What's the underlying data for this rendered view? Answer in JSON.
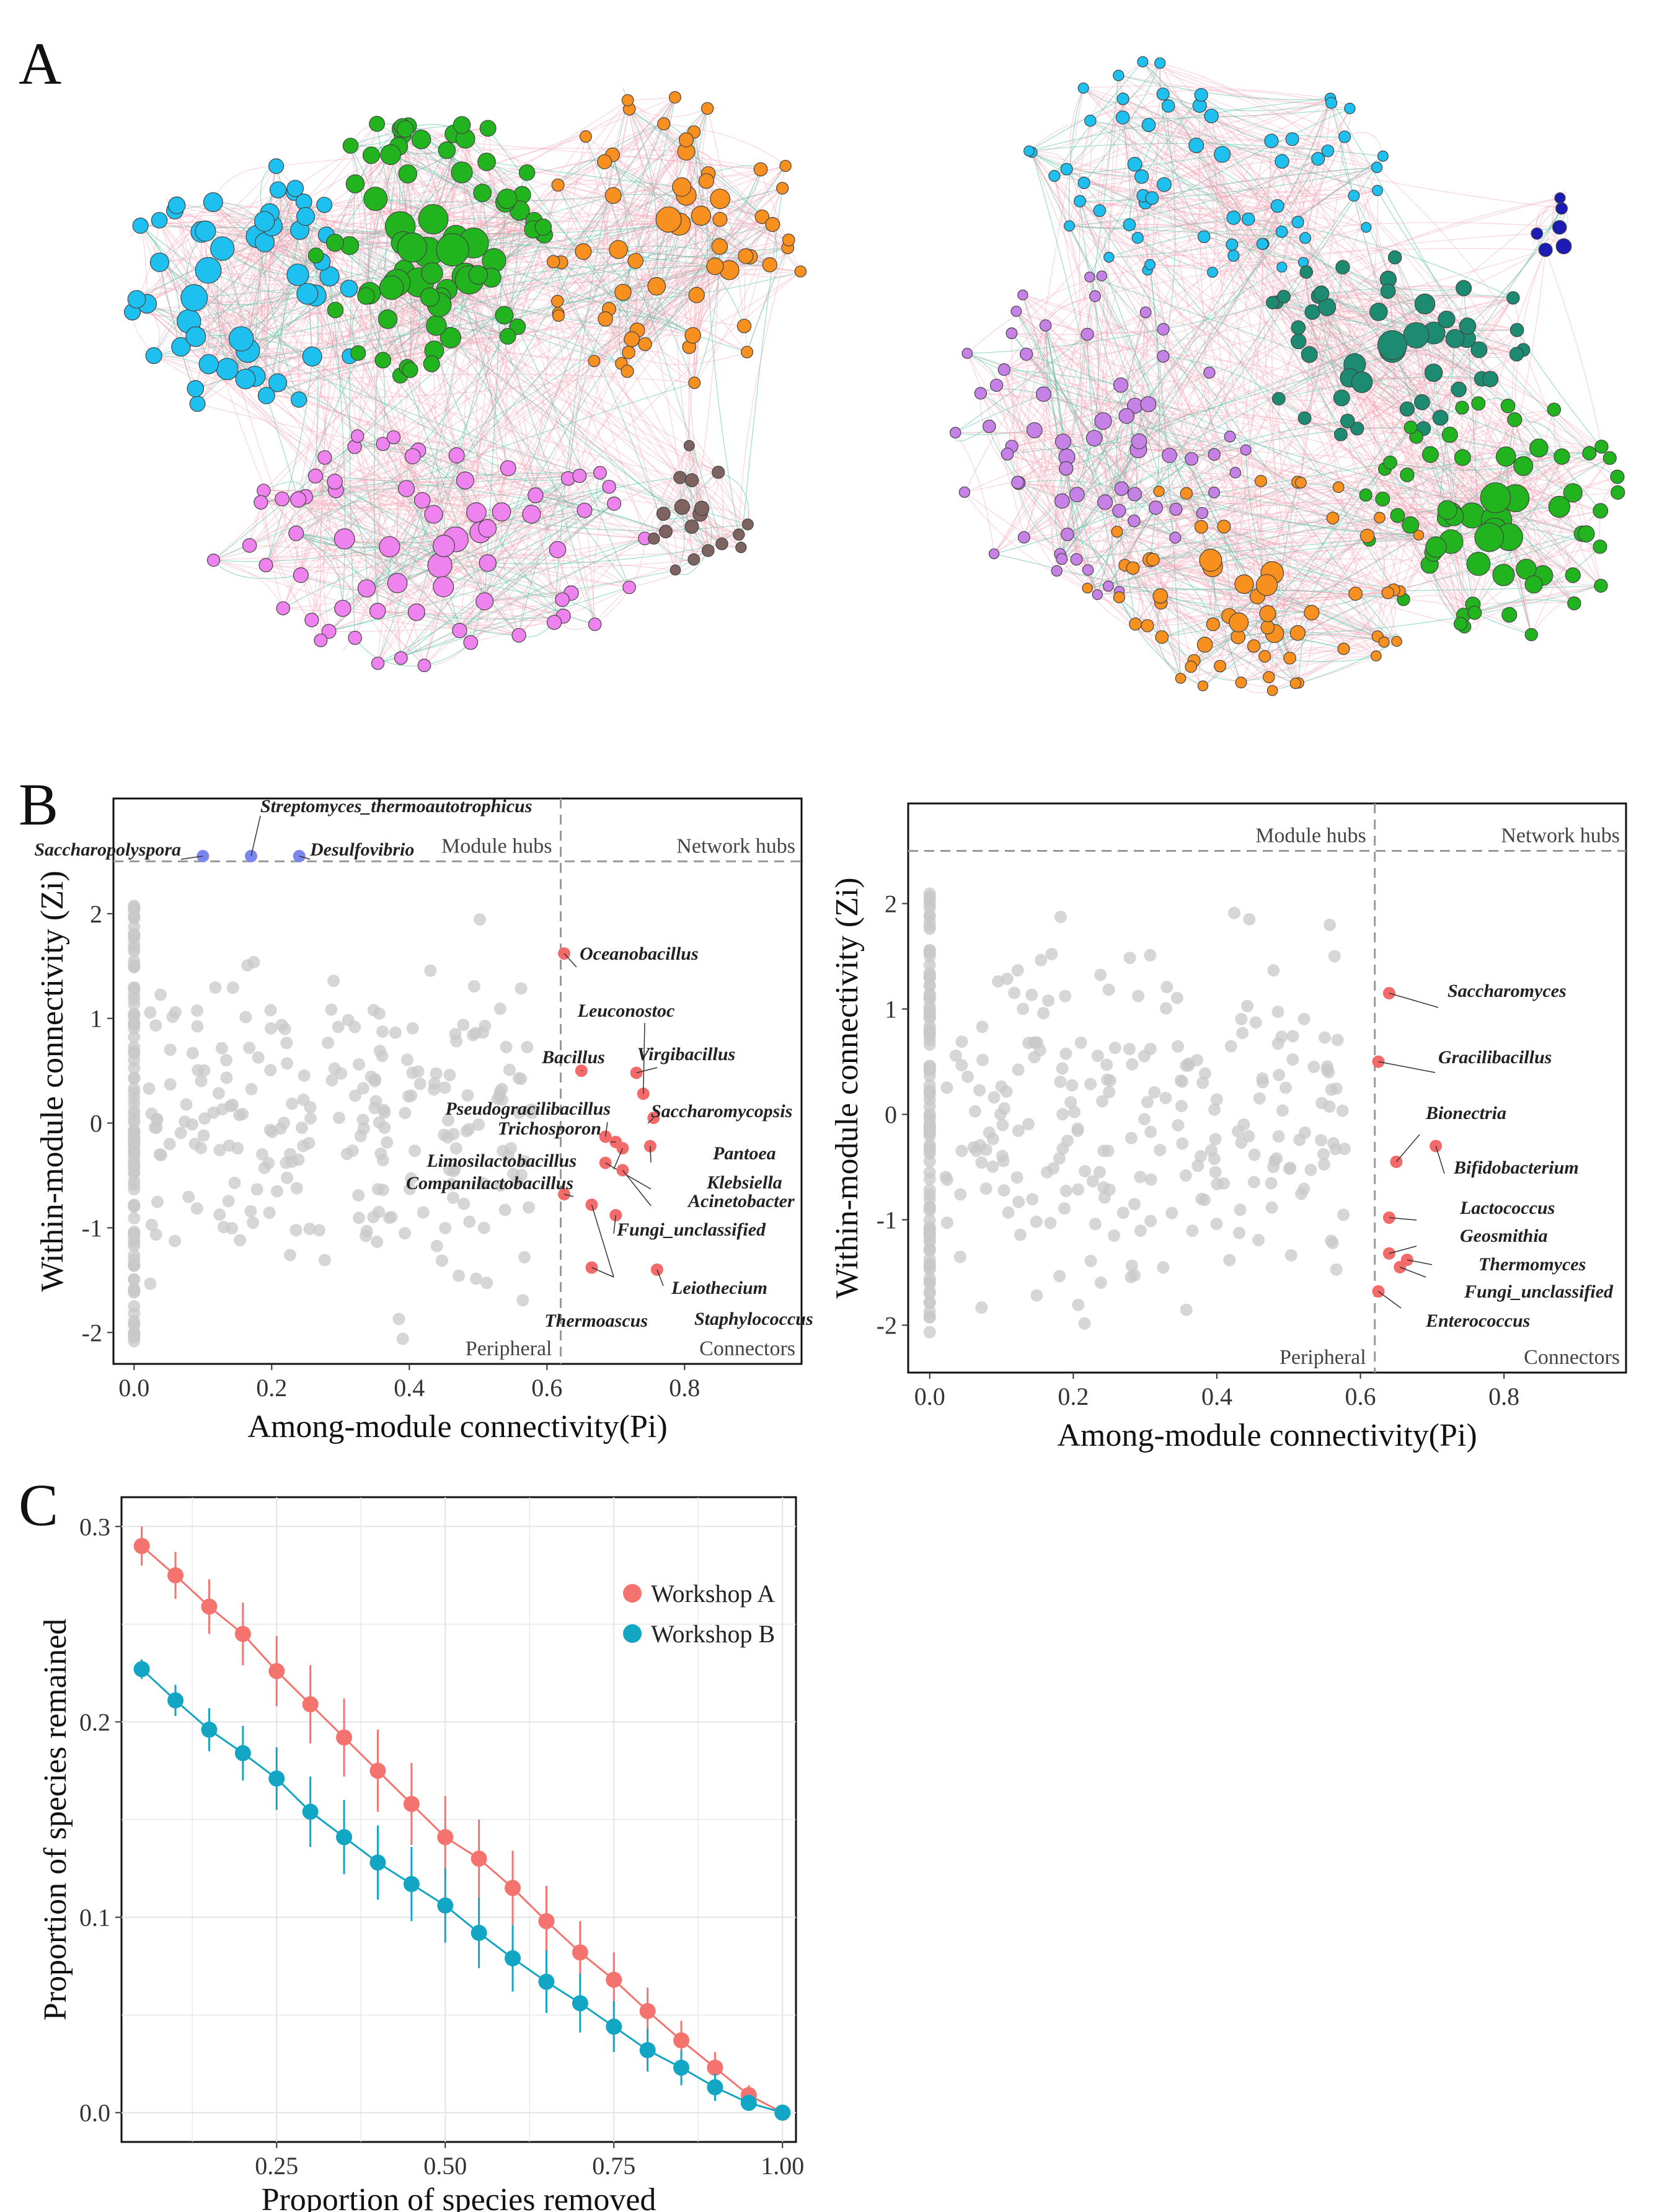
{
  "panels": {
    "A": "A",
    "B": "B",
    "C": "C"
  },
  "colors": {
    "blue": "#1ec0f0",
    "green": "#22b41e",
    "orange": "#f7901e",
    "pink": "#ee82ee",
    "brown": "#7d6460",
    "purple": "#c681e6",
    "teal": "#1d8a72",
    "navy": "#1c1cb4",
    "edge_pos": "#f4a0b4",
    "edge_neg": "#4fc0a0",
    "grey": "#c8c8c8",
    "red": "#f36a6a",
    "hub": "#7a86f0",
    "seriesA": "#f5736e",
    "seriesB": "#13a6c4"
  },
  "networkA": {
    "modules": [
      {
        "name": "m1",
        "color": "blue",
        "size": 52
      },
      {
        "name": "m2",
        "color": "green",
        "size": 74
      },
      {
        "name": "m3",
        "color": "orange",
        "size": 62
      },
      {
        "name": "m4",
        "color": "pink",
        "size": 70
      },
      {
        "name": "m5",
        "color": "brown",
        "size": 18
      }
    ]
  },
  "networkB": {
    "modules": [
      {
        "name": "m1",
        "color": "blue",
        "size": 62
      },
      {
        "name": "m2",
        "color": "navy",
        "size": 6
      },
      {
        "name": "m3",
        "color": "purple",
        "size": 66
      },
      {
        "name": "m4",
        "color": "teal",
        "size": 48
      },
      {
        "name": "m5",
        "color": "green",
        "size": 64
      },
      {
        "name": "m6",
        "color": "orange",
        "size": 62
      }
    ]
  },
  "chart_data": [
    {
      "type": "scatter",
      "title": "",
      "xlabel": "Among-module connectivity(Pi)",
      "ylabel": "Within-module connectivity (Zi)",
      "xlim": [
        -0.03,
        0.97
      ],
      "ylim": [
        -2.3,
        3.1
      ],
      "xticks": [
        "0.0",
        "0.2",
        "0.4",
        "0.6",
        "0.8"
      ],
      "yticks": [
        "2",
        "1",
        "0",
        "-1",
        "-2"
      ],
      "thresholds": {
        "pi": 0.62,
        "zi": 2.5
      },
      "quadrants": {
        "module_hubs": "Module hubs",
        "network_hubs": "Network hubs",
        "peripheral": "Peripheral",
        "connectors": "Connectors"
      },
      "hubs": [
        {
          "name": "Saccharopolyspora",
          "pi": 0.1,
          "zi": 2.55
        },
        {
          "name": "Streptomyces_thermoautotrophicus",
          "pi": 0.17,
          "zi": 2.55
        },
        {
          "name": "Desulfovibrio",
          "pi": 0.24,
          "zi": 2.55
        }
      ],
      "connectors": [
        {
          "name": "Oceanobacillus",
          "pi": 0.625,
          "zi": 1.62
        },
        {
          "name": "Leuconostoc",
          "pi": 0.74,
          "zi": 0.28
        },
        {
          "name": "Bacillus",
          "pi": 0.65,
          "zi": 0.5
        },
        {
          "name": "Virgibacillus",
          "pi": 0.73,
          "zi": 0.48
        },
        {
          "name": "Pseudogracilibacillus",
          "pi": 0.685,
          "zi": -0.13
        },
        {
          "name": "Trichosporon",
          "pi": 0.7,
          "zi": -0.18
        },
        {
          "name": "Saccharomycopsis",
          "pi": 0.755,
          "zi": 0.05
        },
        {
          "name": "Pantoea",
          "pi": 0.75,
          "zi": -0.22
        },
        {
          "name": "Limosilactobacillus",
          "pi": 0.71,
          "zi": -0.24
        },
        {
          "name": "Klebsiella",
          "pi": 0.685,
          "zi": -0.38
        },
        {
          "name": "Acinetobacter",
          "pi": 0.71,
          "zi": -0.45
        },
        {
          "name": "Companilactobacillus",
          "pi": 0.625,
          "zi": -0.68
        },
        {
          "name": "Fungi_unclassified",
          "pi": 0.7,
          "zi": -0.88
        },
        {
          "name": "Thermoascus",
          "pi": 0.665,
          "zi": -0.78
        },
        {
          "name": "Staphylococcus",
          "pi": 0.665,
          "zi": -1.38
        },
        {
          "name": "Leiothecium",
          "pi": 0.76,
          "zi": -1.4
        }
      ]
    },
    {
      "type": "scatter",
      "title": "",
      "xlabel": "Among-module connectivity(Pi)",
      "ylabel": "Within-module connectivity (Zi)",
      "xlim": [
        -0.03,
        0.97
      ],
      "ylim": [
        -2.45,
        2.95
      ],
      "xticks": [
        "0.0",
        "0.2",
        "0.4",
        "0.6",
        "0.8"
      ],
      "yticks": [
        "2",
        "1",
        "0",
        "-1",
        "-2"
      ],
      "thresholds": {
        "pi": 0.62,
        "zi": 2.5
      },
      "quadrants": {
        "module_hubs": "Module hubs",
        "network_hubs": "Network hubs",
        "peripheral": "Peripheral",
        "connectors": "Connectors"
      },
      "hubs": [],
      "connectors": [
        {
          "name": "Saccharomyces",
          "pi": 0.64,
          "zi": 1.15
        },
        {
          "name": "Gracilibacillus",
          "pi": 0.625,
          "zi": 0.5
        },
        {
          "name": "Bionectria",
          "pi": 0.65,
          "zi": -0.45
        },
        {
          "name": "Bifidobacterium",
          "pi": 0.705,
          "zi": -0.3
        },
        {
          "name": "Lactococcus",
          "pi": 0.64,
          "zi": -0.98
        },
        {
          "name": "Geosmithia",
          "pi": 0.64,
          "zi": -1.32
        },
        {
          "name": "Thermomyces",
          "pi": 0.665,
          "zi": -1.38
        },
        {
          "name": "Fungi_unclassified",
          "pi": 0.655,
          "zi": -1.45
        },
        {
          "name": "Enterococcus",
          "pi": 0.625,
          "zi": -1.68
        }
      ]
    },
    {
      "type": "line",
      "title": "",
      "xlabel": "Proportion of species removed",
      "ylabel": "Proportion of species remained",
      "xlim": [
        0.02,
        1.02
      ],
      "ylim": [
        -0.015,
        0.315
      ],
      "xticks": [
        "0.25",
        "0.50",
        "0.75",
        "1.00"
      ],
      "yticks": [
        "0.3",
        "0.2",
        "0.1",
        "0.0"
      ],
      "x": [
        0.05,
        0.1,
        0.15,
        0.2,
        0.25,
        0.3,
        0.35,
        0.4,
        0.45,
        0.5,
        0.55,
        0.6,
        0.65,
        0.7,
        0.75,
        0.8,
        0.85,
        0.9,
        0.95,
        1.0
      ],
      "series": [
        {
          "name": "Workshop A",
          "color": "seriesA",
          "values": [
            0.29,
            0.275,
            0.259,
            0.245,
            0.226,
            0.209,
            0.192,
            0.175,
            0.158,
            0.141,
            0.13,
            0.115,
            0.098,
            0.082,
            0.068,
            0.052,
            0.037,
            0.023,
            0.009,
            0.0
          ],
          "err": [
            0.01,
            0.012,
            0.014,
            0.016,
            0.018,
            0.02,
            0.02,
            0.021,
            0.021,
            0.021,
            0.02,
            0.019,
            0.018,
            0.016,
            0.014,
            0.012,
            0.01,
            0.008,
            0.005,
            0.0
          ]
        },
        {
          "name": "Workshop B",
          "color": "seriesB",
          "values": [
            0.227,
            0.211,
            0.196,
            0.184,
            0.171,
            0.154,
            0.141,
            0.128,
            0.117,
            0.106,
            0.092,
            0.079,
            0.067,
            0.056,
            0.044,
            0.032,
            0.023,
            0.013,
            0.005,
            0.0
          ],
          "err": [
            0.005,
            0.008,
            0.011,
            0.014,
            0.016,
            0.018,
            0.019,
            0.019,
            0.019,
            0.019,
            0.018,
            0.017,
            0.016,
            0.015,
            0.013,
            0.011,
            0.009,
            0.007,
            0.004,
            0.0
          ]
        }
      ]
    }
  ]
}
